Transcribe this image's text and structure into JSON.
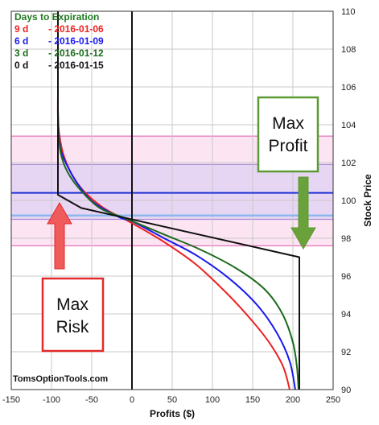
{
  "chart_data": {
    "type": "line",
    "xlabel": "Profits ($)",
    "ylabel": "Stock Price",
    "xlim": [
      -150,
      250
    ],
    "ylim": [
      90,
      110
    ],
    "xticks": [
      -150,
      -100,
      -50,
      0,
      50,
      100,
      150,
      200,
      250
    ],
    "yticks": [
      90,
      92,
      94,
      96,
      98,
      100,
      102,
      104,
      106,
      108,
      110
    ],
    "grid": true,
    "legend": {
      "title": "Days to Expiration",
      "title_color": "#1f7a1f",
      "position": "top-left",
      "entries": [
        {
          "label": "9 d",
          "date": "- 2016-01-06",
          "color": "#ee2222"
        },
        {
          "label": "6 d",
          "date": "- 2016-01-09",
          "color": "#1a1aee"
        },
        {
          "label": "3 d",
          "date": "- 2016-01-12",
          "color": "#1c6b1c"
        },
        {
          "label": "0 d",
          "date": "- 2016-01-15",
          "color": "#111111"
        }
      ]
    },
    "bands": [
      {
        "from": 97.6,
        "to": 103.4,
        "color": "#fde4f2",
        "edge": "#e377b9"
      },
      {
        "from": 99.0,
        "to": 101.9,
        "color": "#e7d6f3",
        "edge": "#a98fd6"
      }
    ],
    "reference_lines": [
      {
        "axis": "y",
        "value": 100.4,
        "color": "#1c2fd6"
      },
      {
        "axis": "y",
        "value": 99.2,
        "color": "#8cb9ec"
      },
      {
        "axis": "x",
        "value": -92,
        "color": "#111111"
      }
    ],
    "series": [
      {
        "name": "9 d",
        "color": "#ee2222",
        "points": [
          [
            -92,
            105.6
          ],
          [
            -92,
            104.4
          ],
          [
            -90,
            103.4
          ],
          [
            -85,
            102.4
          ],
          [
            -75,
            101.4
          ],
          [
            -60,
            100.5
          ],
          [
            -35,
            99.6
          ],
          [
            0,
            98.8
          ],
          [
            40,
            97.8
          ],
          [
            80,
            96.6
          ],
          [
            120,
            95.0
          ],
          [
            150,
            93.6
          ],
          [
            172,
            92.4
          ],
          [
            188,
            91.2
          ],
          [
            196,
            90.0
          ]
        ]
      },
      {
        "name": "6 d",
        "color": "#1a1aee",
        "points": [
          [
            -92,
            104.8
          ],
          [
            -91,
            103.6
          ],
          [
            -88,
            102.6
          ],
          [
            -80,
            101.8
          ],
          [
            -68,
            100.9
          ],
          [
            -48,
            99.9
          ],
          [
            -15,
            99.1
          ],
          [
            0,
            98.9
          ],
          [
            40,
            98.0
          ],
          [
            80,
            97.1
          ],
          [
            120,
            95.9
          ],
          [
            155,
            94.5
          ],
          [
            180,
            93.0
          ],
          [
            196,
            91.5
          ],
          [
            203,
            90.0
          ]
        ]
      },
      {
        "name": "3 d",
        "color": "#1c6b1c",
        "points": [
          [
            -92,
            104.4
          ],
          [
            -91,
            103.4
          ],
          [
            -88,
            102.4
          ],
          [
            -80,
            101.5
          ],
          [
            -65,
            100.6
          ],
          [
            -40,
            99.6
          ],
          [
            -5,
            99.0
          ],
          [
            40,
            98.2
          ],
          [
            85,
            97.4
          ],
          [
            130,
            96.4
          ],
          [
            165,
            95.3
          ],
          [
            187,
            94.0
          ],
          [
            200,
            92.5
          ],
          [
            205,
            91.2
          ],
          [
            207,
            90.0
          ]
        ]
      },
      {
        "name": "0 d",
        "color": "#111111",
        "points": [
          [
            -92,
            110
          ],
          [
            -92,
            100.3
          ],
          [
            -63,
            99.6
          ],
          [
            208,
            97.0
          ],
          [
            208,
            90.0
          ]
        ]
      }
    ],
    "annotations": [
      {
        "text_lines": [
          "Max",
          "Profit"
        ],
        "border": "#5b9a34",
        "arrow_color": "#6aa13a",
        "arrow_direction": "down"
      },
      {
        "text_lines": [
          "Max",
          "Risk"
        ],
        "border": "#e22a2a",
        "arrow_color": "#ef5a5a",
        "arrow_direction": "up"
      }
    ],
    "watermark": "TomsOptionTools.com"
  }
}
